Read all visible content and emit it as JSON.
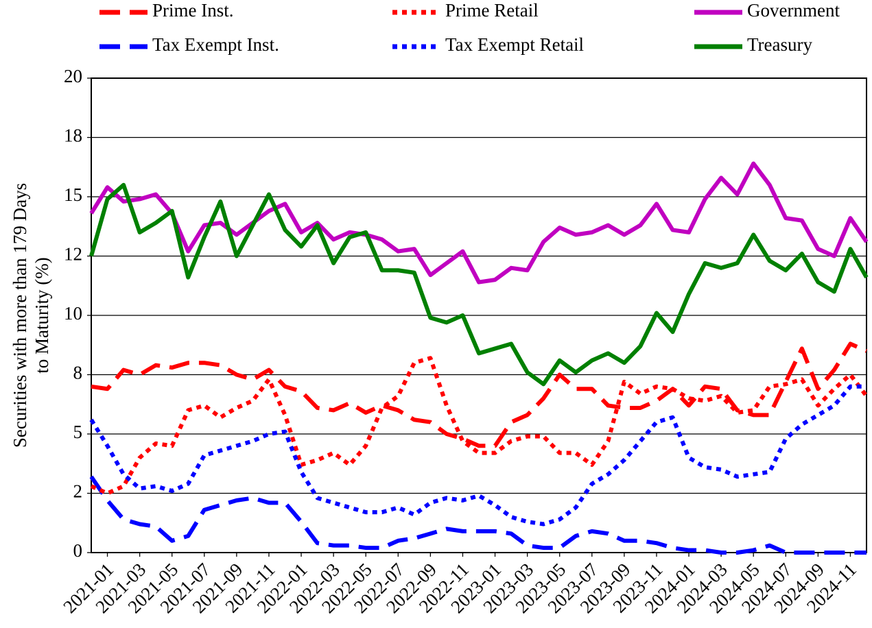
{
  "chart_data": {
    "type": "line",
    "y_label": [
      "Securities with more than 179 Days",
      "to Maturity (%)"
    ],
    "categories": [
      null,
      "2021-01",
      null,
      "2021-03",
      null,
      "2021-05",
      null,
      "2021-07",
      null,
      "2021-09",
      null,
      "2021-11",
      null,
      "2022-01",
      null,
      "2022-03",
      null,
      "2022-05",
      null,
      "2022-07",
      null,
      "2022-09",
      null,
      "2022-11",
      null,
      "2023-01",
      null,
      "2023-03",
      null,
      "2023-05",
      null,
      "2023-07",
      null,
      "2023-09",
      null,
      "2023-11",
      null,
      "2024-01",
      null,
      "2024-03",
      null,
      "2024-05",
      null,
      "2024-07",
      null,
      "2024-09",
      null,
      "2024-11",
      null
    ],
    "ylim": [
      0,
      20
    ],
    "yticks": [
      0,
      {
        "value": 2.5,
        "label": "2"
      },
      5,
      {
        "value": 7.5,
        "label": "8"
      },
      10,
      {
        "value": 12.5,
        "label": "12"
      },
      15,
      {
        "value": 17.5,
        "label": "18"
      },
      20
    ],
    "grid": true,
    "legend": "top",
    "series": [
      {
        "name": "Prime Inst.",
        "color": "#ff0000",
        "line_style": "dashed",
        "values": [
          7.0,
          6.9,
          7.7,
          7.5,
          7.9,
          7.8,
          8.0,
          8.0,
          7.9,
          7.5,
          7.3,
          7.7,
          7.0,
          6.8,
          6.1,
          6.0,
          6.3,
          5.9,
          6.2,
          6.0,
          5.6,
          5.5,
          5.0,
          4.8,
          4.5,
          4.5,
          5.5,
          5.8,
          6.5,
          7.5,
          6.9,
          6.9,
          6.2,
          6.1,
          6.1,
          6.4,
          6.9,
          6.2,
          7.0,
          6.9,
          6.0,
          5.8,
          5.8,
          7.2,
          8.6,
          6.9,
          7.7,
          8.8,
          8.5
        ]
      },
      {
        "name": "Tax Exempt Inst.",
        "color": "#0000ff",
        "line_style": "dashed",
        "values": [
          3.2,
          2.2,
          1.4,
          1.2,
          1.1,
          0.5,
          0.7,
          1.8,
          2.0,
          2.2,
          2.3,
          2.1,
          2.1,
          1.3,
          0.4,
          0.3,
          0.3,
          0.2,
          0.2,
          0.5,
          0.6,
          0.8,
          1.0,
          0.9,
          0.9,
          0.9,
          0.8,
          0.3,
          0.2,
          0.2,
          0.7,
          0.9,
          0.8,
          0.5,
          0.5,
          0.4,
          0.2,
          0.1,
          0.1,
          0.0,
          0.0,
          0.1,
          0.3,
          0.0,
          0.0,
          0.0,
          0.0,
          0.0,
          0.0
        ]
      },
      {
        "name": "Prime Retail",
        "color": "#ff0000",
        "line_style": "dotted",
        "values": [
          2.8,
          2.5,
          2.8,
          4.0,
          4.6,
          4.5,
          6.0,
          6.2,
          5.7,
          6.1,
          6.4,
          7.3,
          5.8,
          3.7,
          3.9,
          4.2,
          3.7,
          4.5,
          6.1,
          6.6,
          8.0,
          8.2,
          6.2,
          4.7,
          4.2,
          4.2,
          4.7,
          4.9,
          4.9,
          4.2,
          4.2,
          3.7,
          4.7,
          7.2,
          6.7,
          7.0,
          6.9,
          6.5,
          6.4,
          6.6,
          5.9,
          6.0,
          7.0,
          7.1,
          7.3,
          6.2,
          6.9,
          7.5,
          6.6
        ]
      },
      {
        "name": "Tax Exempt Retail",
        "color": "#0000ff",
        "line_style": "dotted",
        "values": [
          5.6,
          4.5,
          3.3,
          2.7,
          2.8,
          2.6,
          2.9,
          4.1,
          4.3,
          4.5,
          4.7,
          5.0,
          5.1,
          3.4,
          2.3,
          2.1,
          1.9,
          1.7,
          1.7,
          1.9,
          1.6,
          2.1,
          2.3,
          2.2,
          2.4,
          2.0,
          1.5,
          1.3,
          1.2,
          1.4,
          1.9,
          2.9,
          3.3,
          3.9,
          4.7,
          5.5,
          5.7,
          4.0,
          3.6,
          3.5,
          3.2,
          3.3,
          3.4,
          4.8,
          5.4,
          5.8,
          6.2,
          7.0,
          7.0
        ]
      },
      {
        "name": "Government",
        "color": "#c000c0",
        "line_style": "solid",
        "values": [
          14.3,
          15.4,
          14.8,
          14.9,
          15.1,
          14.3,
          12.7,
          13.8,
          13.9,
          13.4,
          13.9,
          14.4,
          14.7,
          13.5,
          13.9,
          13.2,
          13.5,
          13.4,
          13.2,
          12.7,
          12.8,
          11.7,
          12.2,
          12.7,
          11.4,
          11.5,
          12.0,
          11.9,
          13.1,
          13.7,
          13.4,
          13.5,
          13.8,
          13.4,
          13.8,
          14.7,
          13.6,
          13.5,
          14.9,
          15.8,
          15.1,
          16.4,
          15.5,
          14.1,
          14.0,
          12.8,
          12.5,
          14.1,
          13.1
        ]
      },
      {
        "name": "Treasury",
        "color": "#008000",
        "line_style": "solid",
        "values": [
          12.5,
          14.9,
          15.5,
          13.5,
          13.9,
          14.4,
          11.6,
          13.3,
          14.8,
          12.5,
          13.8,
          15.1,
          13.6,
          12.9,
          13.8,
          12.2,
          13.3,
          13.5,
          11.9,
          11.9,
          11.8,
          9.9,
          9.7,
          10.0,
          8.4,
          8.6,
          8.8,
          7.6,
          7.1,
          8.1,
          7.6,
          8.1,
          8.4,
          8.0,
          8.7,
          10.1,
          9.3,
          10.9,
          12.2,
          12.0,
          12.2,
          13.4,
          12.3,
          11.9,
          12.6,
          11.4,
          11.0,
          12.8,
          11.6
        ]
      }
    ]
  }
}
